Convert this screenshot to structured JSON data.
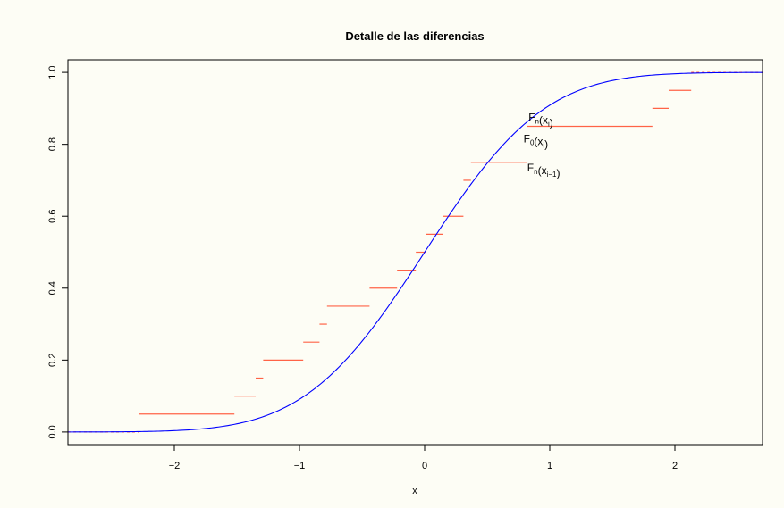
{
  "chart_data": {
    "type": "line",
    "title": "Detalle de las diferencias",
    "xlabel": "x",
    "ylabel": "",
    "xlim": [
      -2.85,
      2.7
    ],
    "ylim": [
      -0.035,
      1.035
    ],
    "xticks": [
      -2,
      -1,
      0,
      1,
      2
    ],
    "xtick_labels": [
      "−2",
      "−1",
      "0",
      "1",
      "2"
    ],
    "yticks": [
      0.0,
      0.2,
      0.4,
      0.6,
      0.8,
      1.0
    ],
    "ytick_labels": [
      "0.0",
      "0.2",
      "0.4",
      "0.6",
      "0.8",
      "1.0"
    ],
    "grid": false,
    "colors": {
      "cdf": "#0000ff",
      "ecdf": "#ff6347",
      "frame": "#000000"
    },
    "cdf": {
      "name": "",
      "distribution": "normal",
      "mean": 0,
      "sd": 0.75
    },
    "ecdf_steps": [
      {
        "x0": -2.85,
        "x1": -2.28,
        "y": 0.0,
        "dashed": true
      },
      {
        "x0": -2.28,
        "x1": -1.52,
        "y": 0.05
      },
      {
        "x0": -1.52,
        "x1": -1.35,
        "y": 0.1
      },
      {
        "x0": -1.35,
        "x1": -1.29,
        "y": 0.15
      },
      {
        "x0": -1.29,
        "x1": -0.97,
        "y": 0.2
      },
      {
        "x0": -0.97,
        "x1": -0.84,
        "y": 0.25
      },
      {
        "x0": -0.84,
        "x1": -0.78,
        "y": 0.3
      },
      {
        "x0": -0.78,
        "x1": -0.44,
        "y": 0.35
      },
      {
        "x0": -0.44,
        "x1": -0.22,
        "y": 0.4
      },
      {
        "x0": -0.22,
        "x1": -0.07,
        "y": 0.45
      },
      {
        "x0": -0.07,
        "x1": 0.01,
        "y": 0.5
      },
      {
        "x0": 0.01,
        "x1": 0.15,
        "y": 0.55
      },
      {
        "x0": 0.15,
        "x1": 0.31,
        "y": 0.6
      },
      {
        "x0": 0.31,
        "x1": 0.37,
        "y": 0.7
      },
      {
        "x0": 0.37,
        "x1": 0.82,
        "y": 0.75
      },
      {
        "x0": 0.82,
        "x1": 1.82,
        "y": 0.85
      },
      {
        "x0": 1.82,
        "x1": 1.95,
        "y": 0.9
      },
      {
        "x0": 1.95,
        "x1": 2.13,
        "y": 0.95
      },
      {
        "x0": 2.13,
        "x1": 2.7,
        "y": 1.0,
        "dashed": true
      }
    ],
    "annotations": [
      {
        "main": "F",
        "sub": "n",
        "open": "(x",
        "isub": "i",
        "close": ")",
        "x": 0.83,
        "y": 0.865
      },
      {
        "main": "F",
        "sub": "0",
        "open": "(x",
        "isub": "i",
        "close": ")",
        "x": 0.79,
        "y": 0.805
      },
      {
        "main": "F",
        "sub": "n",
        "open": "(x",
        "isub": "i−1",
        "close": ")",
        "x": 0.82,
        "y": 0.725
      }
    ]
  }
}
